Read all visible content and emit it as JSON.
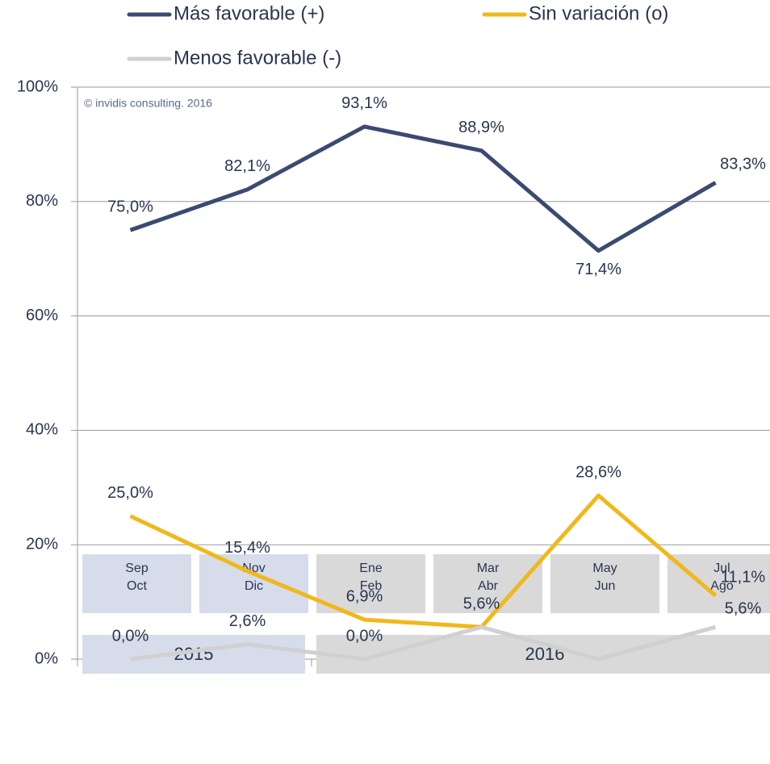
{
  "chart_data": {
    "type": "line",
    "annotation": "© invidis consulting. 2016",
    "categories": [
      [
        "Sep",
        "Oct"
      ],
      [
        "Nov",
        "Dic"
      ],
      [
        "Ene",
        "Feb"
      ],
      [
        "Mar",
        "Abr"
      ],
      [
        "May",
        "Jun"
      ],
      [
        "Jul",
        "Ago"
      ]
    ],
    "groups": [
      {
        "label": "2015",
        "count": 2,
        "color": "#d6dcea"
      },
      {
        "label": "2016",
        "count": 4,
        "color": "#d9d9d9"
      }
    ],
    "series": [
      {
        "name": "Más favorable (+)",
        "color": "#3b4a70",
        "values": [
          75.0,
          82.1,
          93.1,
          88.9,
          71.4,
          83.3
        ],
        "value_labels": [
          "75,0%",
          "82,1%",
          "93,1%",
          "88,9%",
          "71,4%",
          "83,3%"
        ]
      },
      {
        "name": "Sin variación (o)",
        "color": "#f0b81a",
        "values": [
          25.0,
          15.4,
          6.9,
          5.6,
          28.6,
          11.1
        ],
        "value_labels": [
          "25,0%",
          "15,4%",
          "6,9%",
          "5,6%",
          "28,6%",
          "11,1%"
        ]
      },
      {
        "name": "Menos favorable (-)",
        "color": "#d0d0d0",
        "values": [
          0.0,
          2.6,
          0.0,
          5.6,
          0.0,
          5.6
        ],
        "value_labels": [
          "0,0%",
          "2,6%",
          "0,0%",
          null,
          null,
          "5,6%"
        ]
      }
    ],
    "ylim": [
      0,
      100
    ],
    "yticks": [
      {
        "value": 0,
        "label": "0%"
      },
      {
        "value": 20,
        "label": "20%"
      },
      {
        "value": 40,
        "label": "40%"
      },
      {
        "value": 60,
        "label": "60%"
      },
      {
        "value": 80,
        "label": "80%"
      },
      {
        "value": 100,
        "label": "100%"
      }
    ],
    "grid": true
  }
}
